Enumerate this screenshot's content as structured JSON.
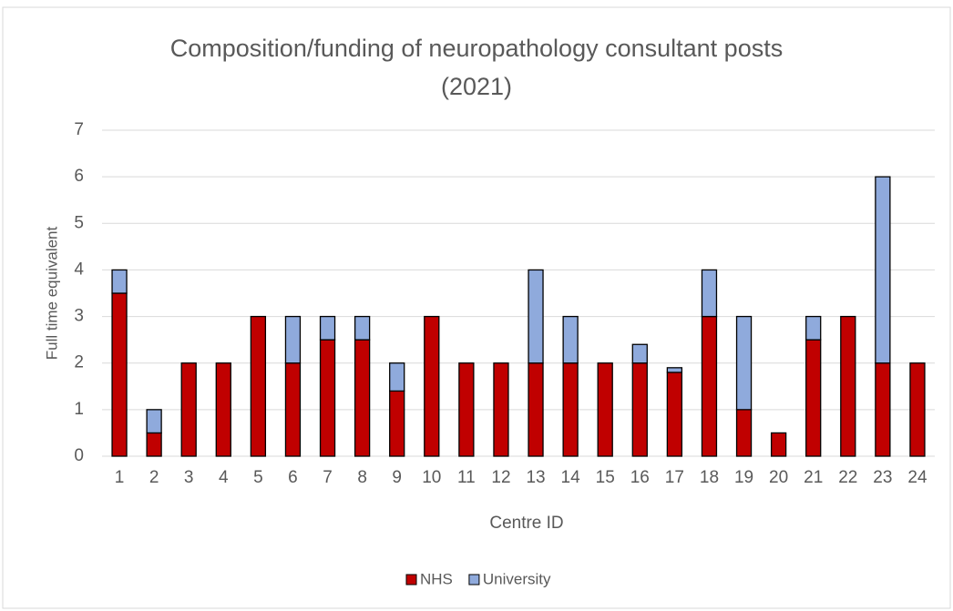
{
  "chart_data": {
    "type": "stacked_bar",
    "title": "Composition/funding of neuropathology consultant posts (2021)",
    "x_label": "Centre ID",
    "y_label": "Full time equivalent",
    "categories": [
      "1",
      "2",
      "3",
      "4",
      "5",
      "6",
      "7",
      "8",
      "9",
      "10",
      "11",
      "12",
      "13",
      "14",
      "15",
      "16",
      "17",
      "18",
      "19",
      "20",
      "21",
      "22",
      "23",
      "24"
    ],
    "series": [
      {
        "name": "NHS",
        "color": "#c00000",
        "values": [
          3.5,
          0.5,
          2,
          2,
          3,
          2,
          2.5,
          2.5,
          1.4,
          3,
          2,
          2,
          2,
          2,
          2,
          2,
          1.8,
          3,
          1,
          0.5,
          2.5,
          3,
          2,
          2
        ]
      },
      {
        "name": "University",
        "color": "#8faadc",
        "values": [
          0.5,
          0.5,
          0,
          0,
          0,
          1,
          0.5,
          0.5,
          0.6,
          0,
          0,
          0,
          2,
          1,
          0,
          0.4,
          0.1,
          1,
          2,
          0,
          0.5,
          0,
          4,
          0
        ]
      }
    ],
    "ylim": [
      0,
      7
    ],
    "yticks": [
      0,
      1,
      2,
      3,
      4,
      5,
      6,
      7
    ],
    "grid": true,
    "legend": "bottom"
  }
}
